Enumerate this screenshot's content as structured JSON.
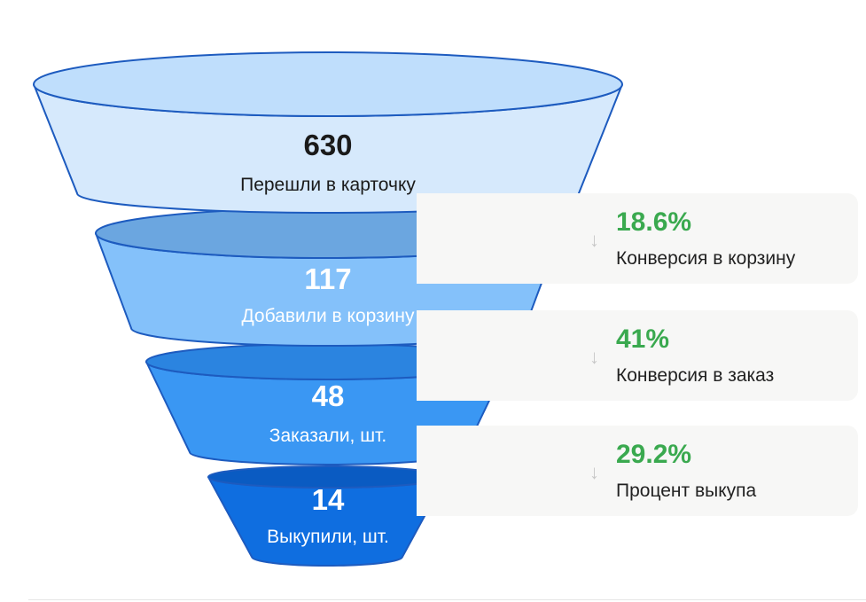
{
  "chart_data": {
    "type": "funnel",
    "stages": [
      {
        "value": "630",
        "label": "Перешли в карточку"
      },
      {
        "value": "117",
        "label": "Добавили в корзину"
      },
      {
        "value": "48",
        "label": "Заказали, шт."
      },
      {
        "value": "14",
        "label": "Выкупили, шт."
      }
    ],
    "values": [
      630,
      117,
      48,
      14
    ],
    "conversions": [
      {
        "value": "18.6%",
        "label": "Конверсия в корзину"
      },
      {
        "value": "41%",
        "label": "Конверсия в заказ"
      },
      {
        "value": "29.2%",
        "label": "Процент выкупа"
      }
    ]
  },
  "colors": {
    "stage_fills": [
      "#d6e9fc",
      "#84c1fa",
      "#3a97f3",
      "#0f6ee0"
    ],
    "stage_tops": [
      "#bfdefc",
      "#6ba6e0",
      "#2b84e0",
      "#0a5bc2"
    ],
    "stage_strokes": [
      "#1d5bbf",
      "#1d5bbf",
      "#1d5bbf",
      "#1d5bbf"
    ],
    "conversion_value": "#3aa94f",
    "card_background": "#f7f7f6"
  },
  "icons": {
    "conversion_arrow": "arrow-down-icon",
    "conversion_arrow_glyph": "↓"
  }
}
